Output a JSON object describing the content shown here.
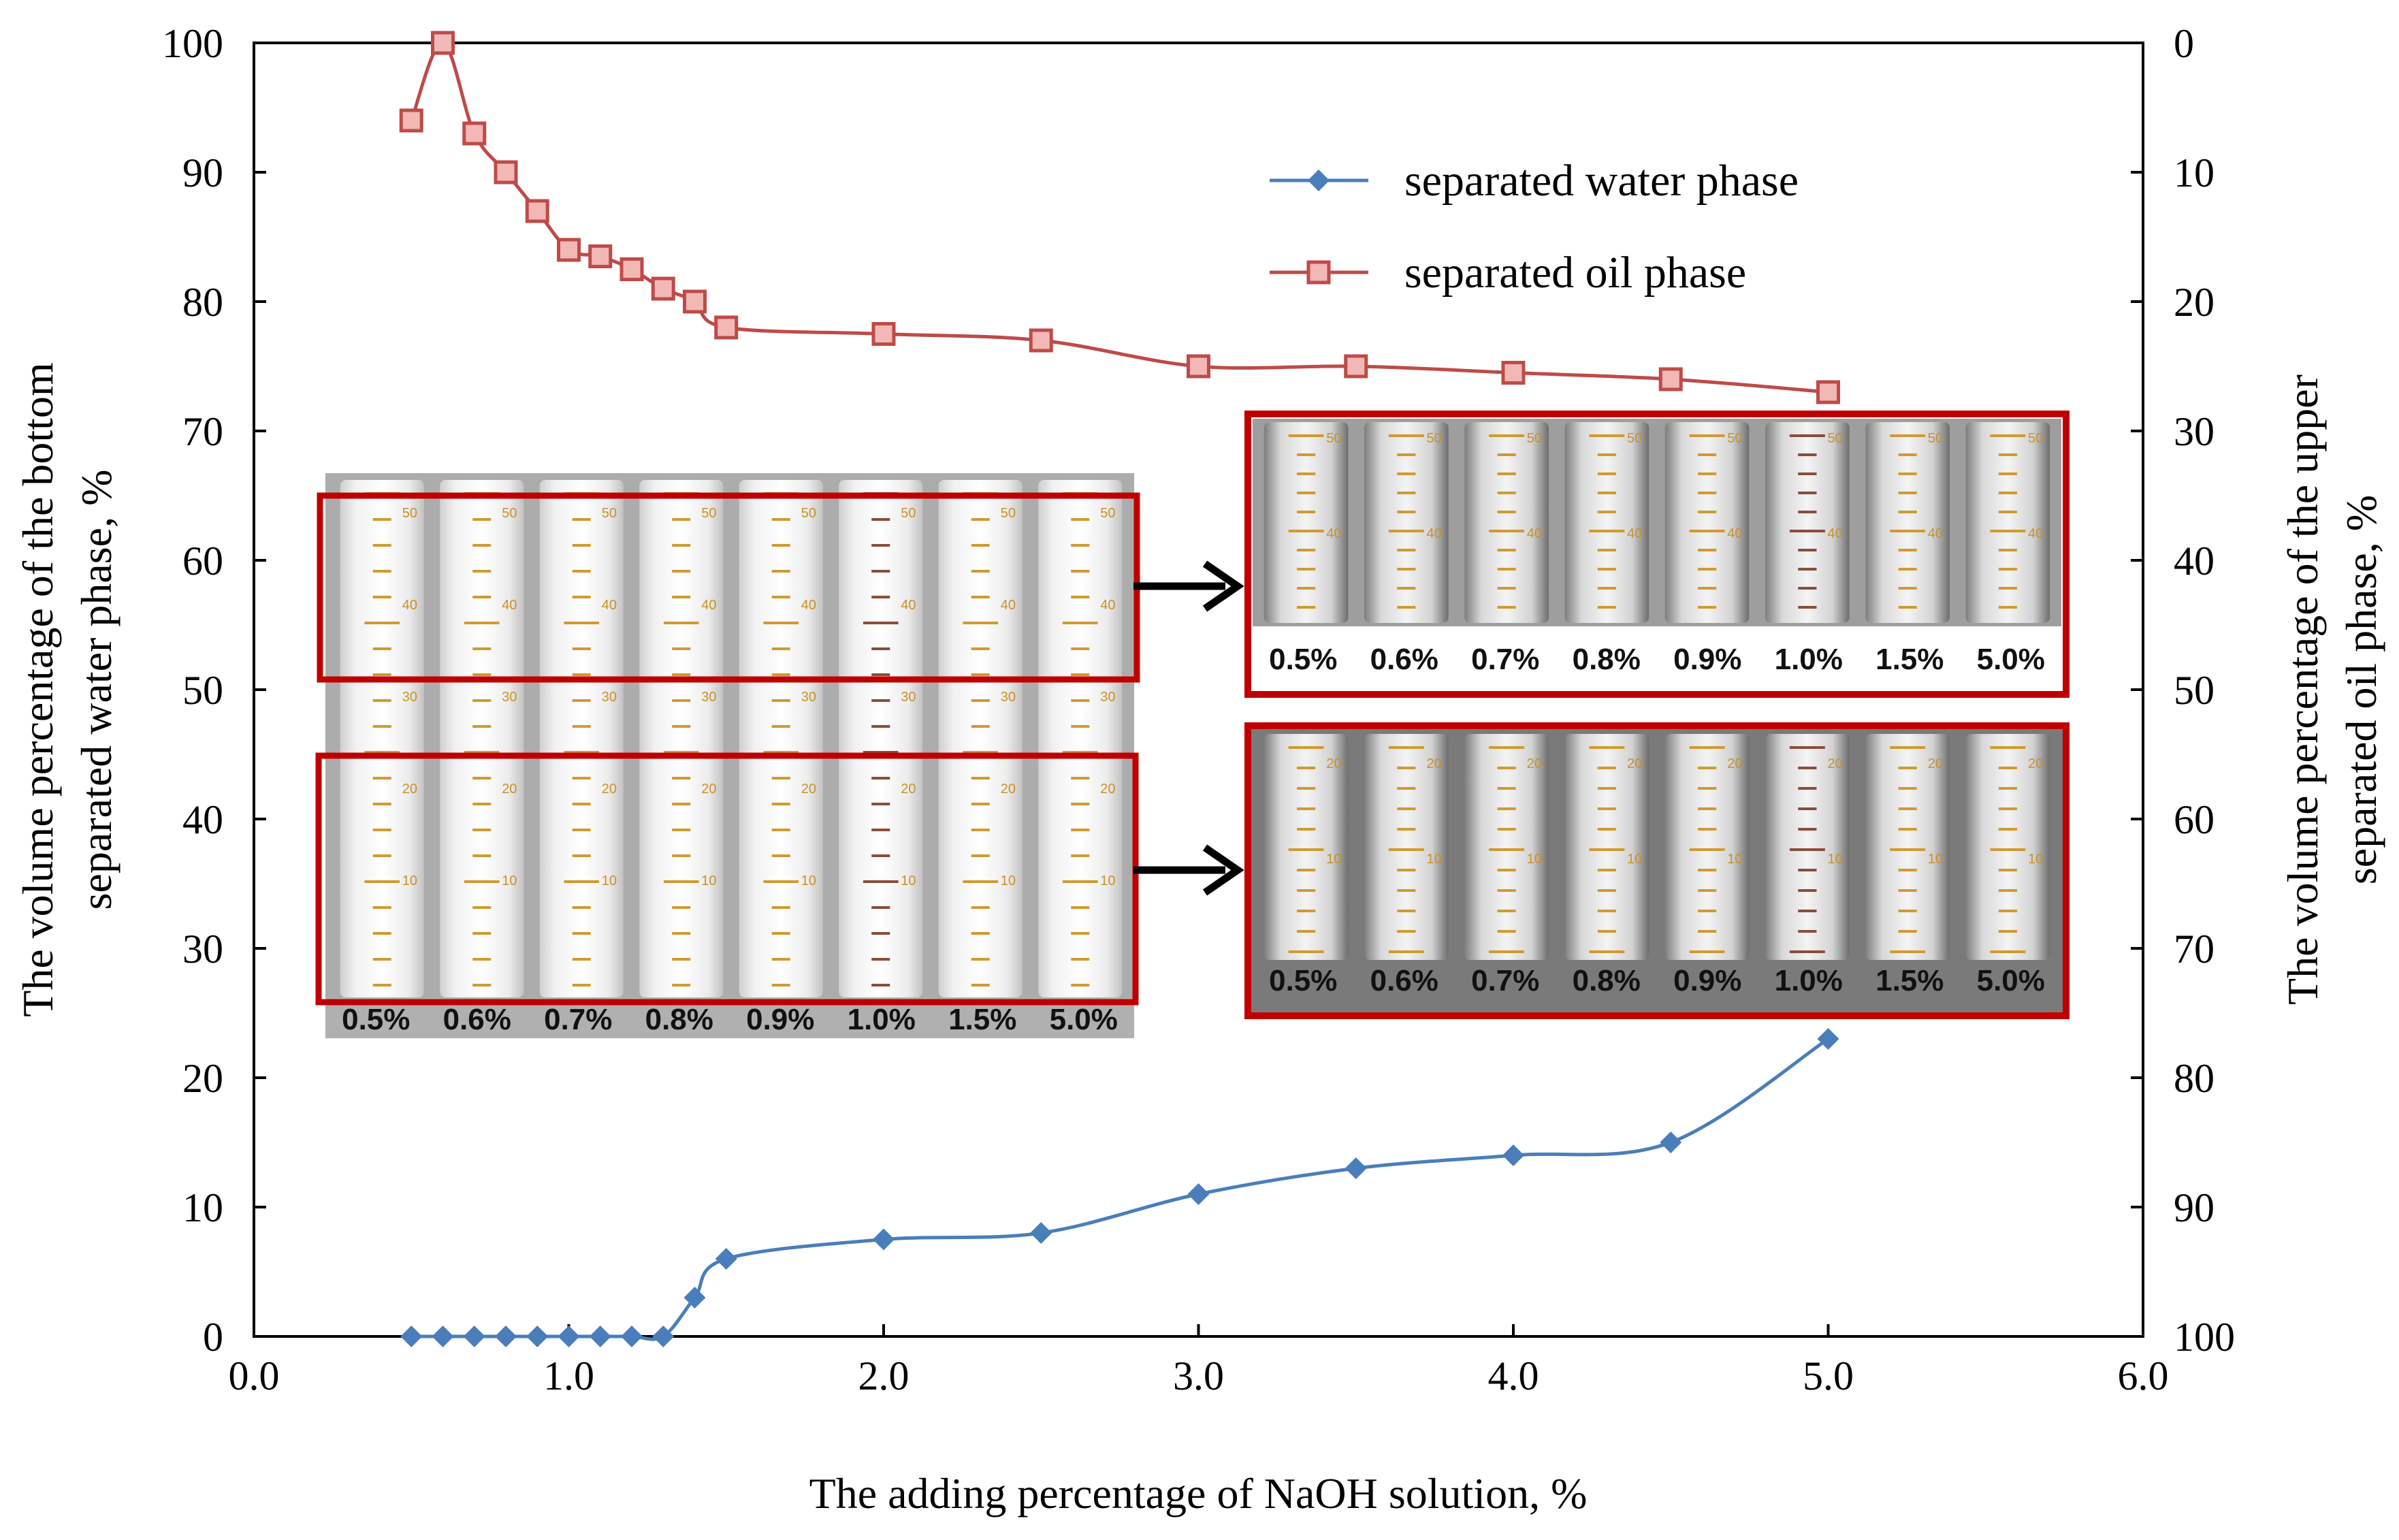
{
  "chart_data": {
    "type": "line",
    "xlabel": "The adding percentage of NaOH solution, %",
    "ylabel_left": [
      "The volume percentage of the bottom",
      "separated water phase, %"
    ],
    "ylabel_right": [
      "The volume percentage of the upper",
      "separated oil phase, %"
    ],
    "xlim": [
      0,
      6
    ],
    "ylim_left": [
      0,
      100
    ],
    "ylim_right": [
      100,
      0
    ],
    "x_ticks": [
      "0.0",
      "1.0",
      "2.0",
      "3.0",
      "4.0",
      "5.0",
      "6.0"
    ],
    "y_left_ticks": [
      "0",
      "10",
      "20",
      "30",
      "40",
      "50",
      "60",
      "70",
      "80",
      "90",
      "100"
    ],
    "y_right_ticks": [
      "100",
      "90",
      "80",
      "70",
      "60",
      "50",
      "40",
      "30",
      "20",
      "10",
      "0"
    ],
    "legend_position": "top-right",
    "grid": false,
    "series": [
      {
        "name": "separated water phase",
        "axis": "left",
        "color": "#4a7ebb",
        "marker": "diamond",
        "x": [
          0.5,
          0.6,
          0.7,
          0.8,
          0.9,
          1.0,
          1.1,
          1.2,
          1.3,
          1.4,
          1.5,
          2.0,
          2.5,
          3.0,
          3.5,
          4.0,
          4.5,
          5.0
        ],
        "values": [
          0,
          0,
          0,
          0,
          0,
          0,
          0,
          0,
          0,
          3,
          6,
          7.5,
          8,
          11,
          13,
          14,
          15,
          23
        ]
      },
      {
        "name": "separated oil phase",
        "axis": "right",
        "color": "#be4b48",
        "marker": "square",
        "x": [
          0.5,
          0.6,
          0.7,
          0.8,
          0.9,
          1.0,
          1.1,
          1.2,
          1.3,
          1.4,
          1.5,
          2.0,
          2.5,
          3.0,
          3.5,
          4.0,
          4.5,
          5.0
        ],
        "values": [
          6,
          0,
          7,
          10,
          13,
          16,
          16.5,
          17.5,
          19,
          20,
          22,
          22.5,
          23,
          25,
          25,
          25.5,
          26,
          27
        ]
      }
    ],
    "inset_labels": [
      "0.5%",
      "0.6%",
      "0.7%",
      "0.8%",
      "0.9%",
      "1.0%",
      "1.5%",
      "5.0%"
    ]
  },
  "colors": {
    "water": "#4a7ebb",
    "oil": "#be4b48",
    "frame": "#c00000"
  }
}
